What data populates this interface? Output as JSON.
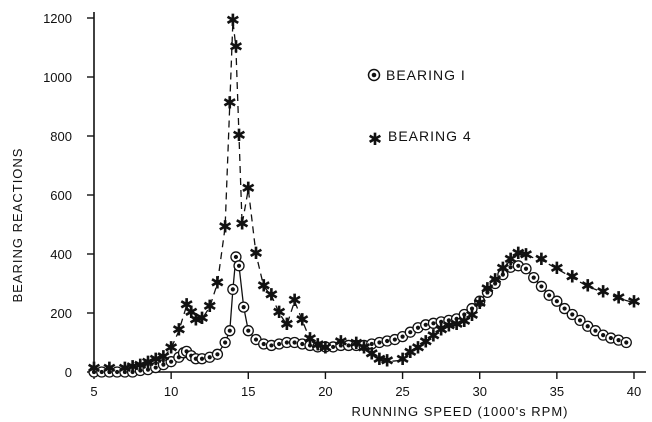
{
  "chart_data": {
    "type": "line",
    "title": "",
    "xlabel": "RUNNING  SPEED (1000's RPM)",
    "ylabel": "BEARING  REACTIONS",
    "xlim": [
      5,
      40
    ],
    "ylim": [
      0,
      1200
    ],
    "xticks": [
      5,
      10,
      15,
      20,
      25,
      30,
      35,
      40
    ],
    "xtick_labels": [
      "5",
      "10",
      "15",
      "20",
      "25",
      "30",
      "35",
      "40"
    ],
    "yticks": [
      0,
      200,
      400,
      600,
      800,
      1000,
      1200
    ],
    "ytick_labels": [
      "0",
      "200",
      "400",
      "600",
      "800",
      "1000",
      "1200"
    ],
    "grid": false,
    "legend_position": "top-center",
    "series": [
      {
        "name": "BEARING I",
        "marker": "circled-dot",
        "line_style": "solid",
        "color": "#111111",
        "x": [
          5,
          5.5,
          6,
          6.5,
          7,
          7.5,
          8,
          8.5,
          9,
          9.5,
          10,
          10.5,
          10.8,
          11,
          11.3,
          11.6,
          12,
          12.5,
          13,
          13.5,
          13.8,
          14,
          14.2,
          14.4,
          14.7,
          15,
          15.5,
          16,
          16.5,
          17,
          17.5,
          18,
          18.5,
          19,
          19.5,
          20,
          20.5,
          21,
          21.5,
          22,
          22.5,
          23,
          23.5,
          24,
          24.5,
          25,
          25.5,
          26,
          26.5,
          27,
          27.5,
          28,
          28.5,
          29,
          29.5,
          30,
          30.5,
          31,
          31.5,
          32,
          32.5,
          33,
          33.5,
          34,
          34.5,
          35,
          35.5,
          36,
          36.5,
          37,
          37.5,
          38,
          38.5,
          39,
          39.5
        ],
        "values": [
          0,
          0,
          0,
          0,
          0,
          0,
          5,
          8,
          15,
          25,
          35,
          50,
          65,
          70,
          55,
          45,
          45,
          50,
          60,
          100,
          140,
          280,
          390,
          360,
          220,
          140,
          110,
          95,
          90,
          95,
          100,
          100,
          95,
          90,
          85,
          85,
          85,
          90,
          90,
          90,
          90,
          95,
          100,
          105,
          110,
          120,
          135,
          150,
          160,
          165,
          170,
          175,
          180,
          195,
          215,
          240,
          270,
          300,
          330,
          355,
          360,
          350,
          320,
          290,
          260,
          240,
          215,
          195,
          175,
          155,
          140,
          125,
          115,
          108,
          100
        ]
      },
      {
        "name": "BEARING 4",
        "marker": "asterisk",
        "line_style": "dashed",
        "color": "#111111",
        "x": [
          5,
          6,
          7,
          7.5,
          8,
          8.5,
          9,
          9.5,
          10,
          10.5,
          11,
          11.3,
          11.6,
          12,
          12.5,
          13,
          13.5,
          13.8,
          14,
          14.2,
          14.4,
          14.6,
          15,
          15.5,
          16,
          16.5,
          17,
          17.5,
          18,
          18.5,
          19,
          19.5,
          20,
          21,
          22,
          22.5,
          23,
          23.5,
          24,
          25,
          25.5,
          26,
          26.5,
          27,
          27.5,
          28,
          28.5,
          29,
          29.5,
          30,
          30.5,
          31,
          31.5,
          32,
          32.5,
          33,
          34,
          35,
          36,
          37,
          38,
          39,
          40
        ],
        "values": [
          10,
          10,
          10,
          15,
          20,
          30,
          40,
          50,
          80,
          140,
          225,
          200,
          175,
          180,
          220,
          300,
          490,
          910,
          1190,
          1100,
          800,
          500,
          620,
          400,
          290,
          260,
          200,
          160,
          240,
          175,
          110,
          90,
          80,
          100,
          95,
          80,
          60,
          40,
          35,
          40,
          65,
          80,
          100,
          120,
          140,
          155,
          160,
          170,
          190,
          230,
          280,
          310,
          350,
          380,
          400,
          395,
          380,
          350,
          320,
          290,
          270,
          250,
          235
        ]
      }
    ]
  }
}
